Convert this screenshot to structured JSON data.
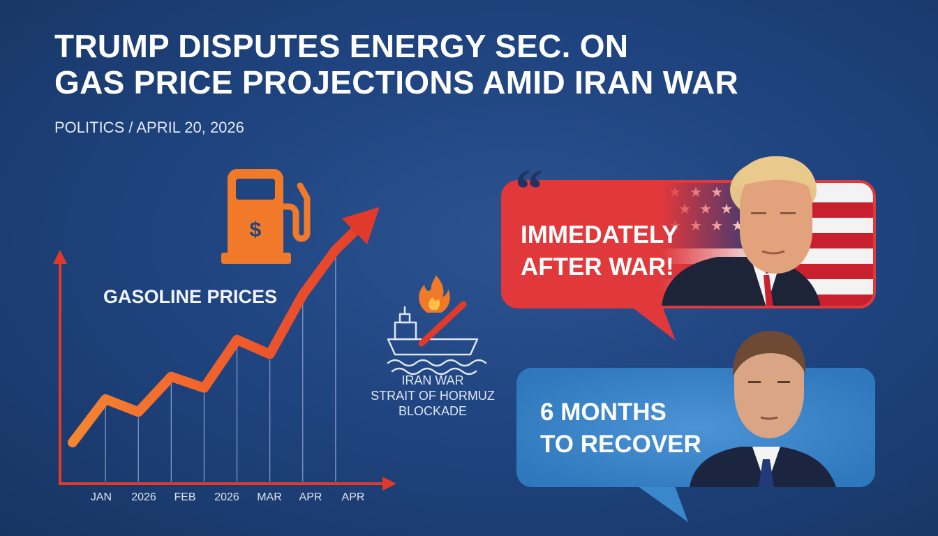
{
  "headline": {
    "line1": "TRUMP DISPUTES ENERGY SEC. ON",
    "line2": "GAS PRICE PROJECTIONS AMID IRAN WAR"
  },
  "meta": {
    "category": "POLITICS",
    "separator": " / ",
    "date": "APRIL 20, 2026"
  },
  "gas_icon": {
    "icon": "gas-pump-dollar-icon",
    "color": "#f07a2a"
  },
  "chart_data": {
    "type": "line",
    "title": "GASOLINE PRICES",
    "x_tick_labels": [
      "JAN",
      "2026",
      "FEB",
      "2026",
      "MAR",
      "APR",
      "APR"
    ],
    "x": [
      0,
      1,
      2,
      3,
      4,
      5,
      6,
      7,
      8,
      9
    ],
    "y": [
      0,
      1.35,
      0.95,
      2.05,
      1.7,
      3.2,
      2.75,
      4.6,
      6.0,
      7.0
    ],
    "ylim": [
      -0.5,
      8
    ],
    "xlim": [
      -0.1,
      9.3
    ],
    "grid": true,
    "gradient_colors": [
      "#f58630",
      "#e23a2a"
    ]
  },
  "event": {
    "icon": "tanker-ship-fire-icon",
    "line1": "IRAN WAR",
    "line2": "STRAIT OF HORMUZ",
    "line3": "BLOCKADE"
  },
  "quote_top": {
    "line1": "IMMEDATELY",
    "line2": "AFTER WAR!",
    "color": "#e0383b",
    "quote_mark": "“"
  },
  "quote_bottom": {
    "line1": "6 MONTHS",
    "line2": "TO RECOVER",
    "color": "#3a88cc"
  },
  "colors": {
    "background": "#1f4480",
    "accent_orange": "#f58630",
    "accent_red": "#e23a2a"
  }
}
